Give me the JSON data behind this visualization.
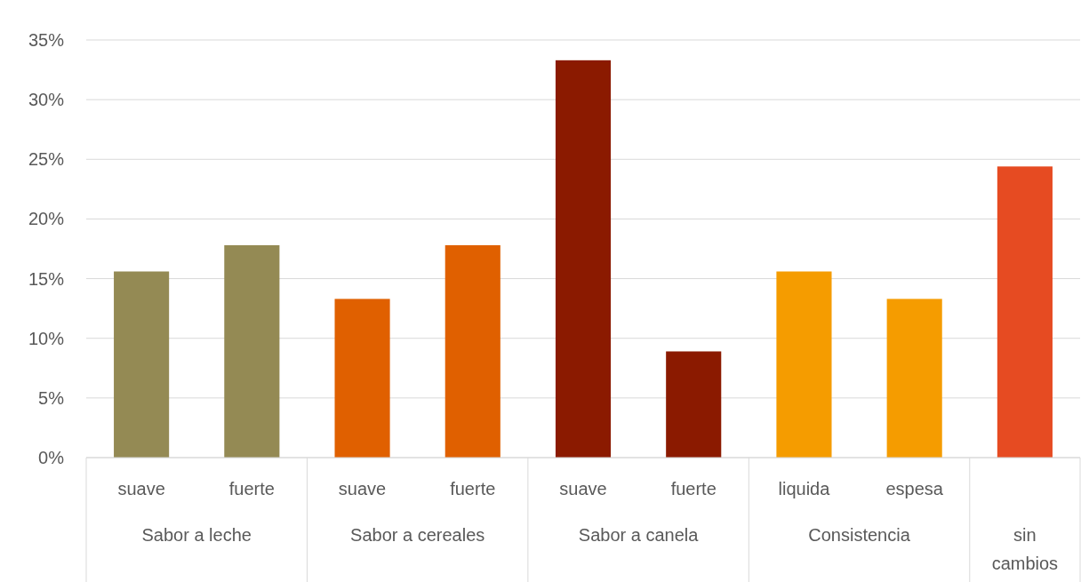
{
  "chart_data": {
    "type": "bar",
    "categories": [
      "suave",
      "fuerte",
      "suave",
      "fuerte",
      "suave",
      "fuerte",
      "liquida",
      "espesa",
      null
    ],
    "values": [
      15.6,
      17.8,
      13.3,
      17.8,
      33.3,
      8.9,
      15.6,
      13.3,
      24.4
    ],
    "colors": [
      "#948a54",
      "#948a54",
      "#e06000",
      "#e06000",
      "#8b1a00",
      "#8b1a00",
      "#f59c00",
      "#f59c00",
      "#e64b22"
    ],
    "annotations": [
      "Sabor a leche",
      "Sabor a cereales",
      "Sabor a canela",
      "Consistencia",
      "sin cambios"
    ],
    "ylim": [
      0,
      35
    ],
    "yticks": [
      {
        "value": 0,
        "label": "0%"
      },
      {
        "value": 5,
        "label": "5%"
      },
      {
        "value": 10,
        "label": "10%"
      },
      {
        "value": 15,
        "label": "15%"
      },
      {
        "value": 20,
        "label": "20%"
      },
      {
        "value": 25,
        "label": "25%"
      },
      {
        "value": 30,
        "label": "30%"
      },
      {
        "value": 35,
        "label": "35%"
      }
    ],
    "grid": "y"
  }
}
